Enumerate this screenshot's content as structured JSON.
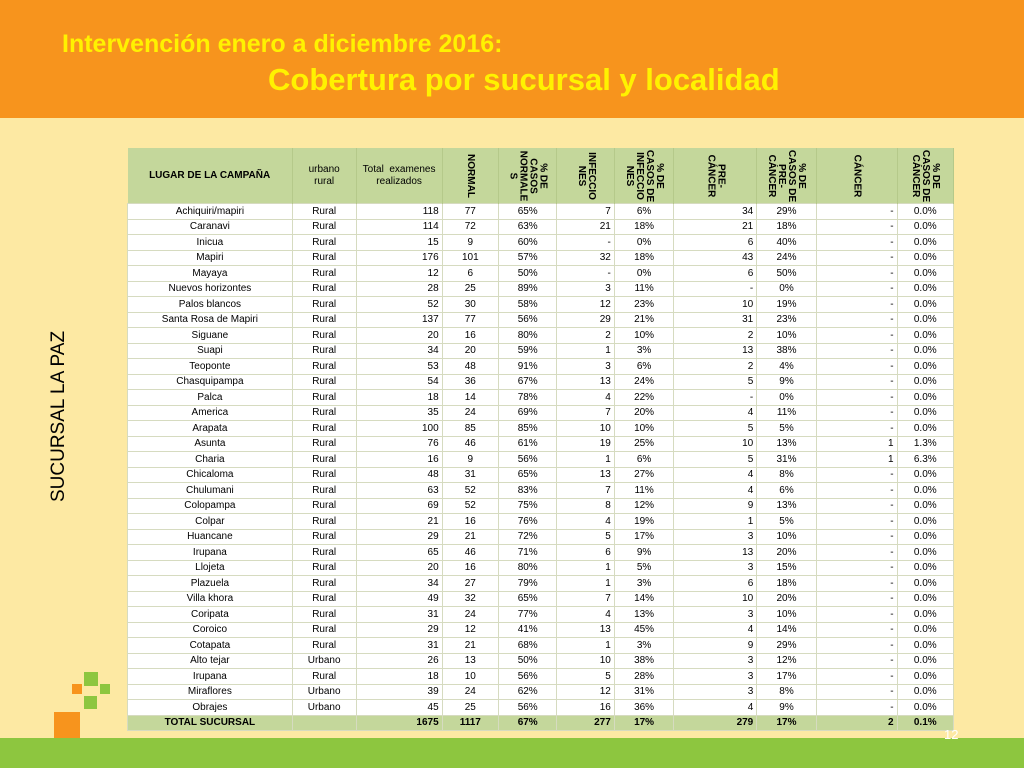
{
  "title_line1": "Intervención enero a diciembre 2016:",
  "title_line2": "Cobertura por sucursal y localidad",
  "side_label": "SUCURSAL  LA PAZ",
  "page_number": "12",
  "colors": {
    "header": "#f7941d",
    "title": "#fff200",
    "background": "#fde9a3",
    "table_header": "#c4d79b",
    "footer": "#8dc63f"
  },
  "table": {
    "headers": [
      "LUGAR DE LA CAMPAÑA",
      "urbano\nrural",
      "Total  examenes\nrealizados",
      "NORMAL",
      "% DE\nCASOS\nNORMALE\nS",
      "INFECCIO\nNES",
      "% DE\nCASOS DE\nINFECCIO\nNES",
      "PRE-\nCÁNCER",
      "% DE\nCASOS DE\nPRE-\nCÁNCER",
      "CÁNCER",
      "% DE\nCASOS DE\nCÁNCER"
    ],
    "rows": [
      [
        "Achiquiri/mapiri",
        "Rural",
        "118",
        "77",
        "65%",
        "7",
        "6%",
        "34",
        "29%",
        "-",
        "0.0%"
      ],
      [
        "Caranavi",
        "Rural",
        "114",
        "72",
        "63%",
        "21",
        "18%",
        "21",
        "18%",
        "-",
        "0.0%"
      ],
      [
        "Inicua",
        "Rural",
        "15",
        "9",
        "60%",
        "-",
        "0%",
        "6",
        "40%",
        "-",
        "0.0%"
      ],
      [
        "Mapiri",
        "Rural",
        "176",
        "101",
        "57%",
        "32",
        "18%",
        "43",
        "24%",
        "-",
        "0.0%"
      ],
      [
        "Mayaya",
        "Rural",
        "12",
        "6",
        "50%",
        "-",
        "0%",
        "6",
        "50%",
        "-",
        "0.0%"
      ],
      [
        "Nuevos horizontes",
        "Rural",
        "28",
        "25",
        "89%",
        "3",
        "11%",
        "-",
        "0%",
        "-",
        "0.0%"
      ],
      [
        "Palos blancos",
        "Rural",
        "52",
        "30",
        "58%",
        "12",
        "23%",
        "10",
        "19%",
        "-",
        "0.0%"
      ],
      [
        "Santa Rosa de Mapiri",
        "Rural",
        "137",
        "77",
        "56%",
        "29",
        "21%",
        "31",
        "23%",
        "-",
        "0.0%"
      ],
      [
        "Siguane",
        "Rural",
        "20",
        "16",
        "80%",
        "2",
        "10%",
        "2",
        "10%",
        "-",
        "0.0%"
      ],
      [
        "Suapi",
        "Rural",
        "34",
        "20",
        "59%",
        "1",
        "3%",
        "13",
        "38%",
        "-",
        "0.0%"
      ],
      [
        "Teoponte",
        "Rural",
        "53",
        "48",
        "91%",
        "3",
        "6%",
        "2",
        "4%",
        "-",
        "0.0%"
      ],
      [
        "Chasquipampa",
        "Rural",
        "54",
        "36",
        "67%",
        "13",
        "24%",
        "5",
        "9%",
        "-",
        "0.0%"
      ],
      [
        "Palca",
        "Rural",
        "18",
        "14",
        "78%",
        "4",
        "22%",
        "-",
        "0%",
        "-",
        "0.0%"
      ],
      [
        "America",
        "Rural",
        "35",
        "24",
        "69%",
        "7",
        "20%",
        "4",
        "11%",
        "-",
        "0.0%"
      ],
      [
        "Arapata",
        "Rural",
        "100",
        "85",
        "85%",
        "10",
        "10%",
        "5",
        "5%",
        "-",
        "0.0%"
      ],
      [
        "Asunta",
        "Rural",
        "76",
        "46",
        "61%",
        "19",
        "25%",
        "10",
        "13%",
        "1",
        "1.3%"
      ],
      [
        "Charia",
        "Rural",
        "16",
        "9",
        "56%",
        "1",
        "6%",
        "5",
        "31%",
        "1",
        "6.3%"
      ],
      [
        "Chicaloma",
        "Rural",
        "48",
        "31",
        "65%",
        "13",
        "27%",
        "4",
        "8%",
        "-",
        "0.0%"
      ],
      [
        "Chulumani",
        "Rural",
        "63",
        "52",
        "83%",
        "7",
        "11%",
        "4",
        "6%",
        "-",
        "0.0%"
      ],
      [
        "Colopampa",
        "Rural",
        "69",
        "52",
        "75%",
        "8",
        "12%",
        "9",
        "13%",
        "-",
        "0.0%"
      ],
      [
        "Colpar",
        "Rural",
        "21",
        "16",
        "76%",
        "4",
        "19%",
        "1",
        "5%",
        "-",
        "0.0%"
      ],
      [
        "Huancane",
        "Rural",
        "29",
        "21",
        "72%",
        "5",
        "17%",
        "3",
        "10%",
        "-",
        "0.0%"
      ],
      [
        "Irupana",
        "Rural",
        "65",
        "46",
        "71%",
        "6",
        "9%",
        "13",
        "20%",
        "-",
        "0.0%"
      ],
      [
        "Llojeta",
        "Rural",
        "20",
        "16",
        "80%",
        "1",
        "5%",
        "3",
        "15%",
        "-",
        "0.0%"
      ],
      [
        "Plazuela",
        "Rural",
        "34",
        "27",
        "79%",
        "1",
        "3%",
        "6",
        "18%",
        "-",
        "0.0%"
      ],
      [
        "Villa khora",
        "Rural",
        "49",
        "32",
        "65%",
        "7",
        "14%",
        "10",
        "20%",
        "-",
        "0.0%"
      ],
      [
        "Coripata",
        "Rural",
        "31",
        "24",
        "77%",
        "4",
        "13%",
        "3",
        "10%",
        "-",
        "0.0%"
      ],
      [
        "Coroico",
        "Rural",
        "29",
        "12",
        "41%",
        "13",
        "45%",
        "4",
        "14%",
        "-",
        "0.0%"
      ],
      [
        "Cotapata",
        "Rural",
        "31",
        "21",
        "68%",
        "1",
        "3%",
        "9",
        "29%",
        "-",
        "0.0%"
      ],
      [
        "Alto tejar",
        "Urbano",
        "26",
        "13",
        "50%",
        "10",
        "38%",
        "3",
        "12%",
        "-",
        "0.0%"
      ],
      [
        "Irupana",
        "Rural",
        "18",
        "10",
        "56%",
        "5",
        "28%",
        "3",
        "17%",
        "-",
        "0.0%"
      ],
      [
        "Miraflores",
        "Urbano",
        "39",
        "24",
        "62%",
        "12",
        "31%",
        "3",
        "8%",
        "-",
        "0.0%"
      ],
      [
        "Obrajes",
        "Urbano",
        "45",
        "25",
        "56%",
        "16",
        "36%",
        "4",
        "9%",
        "-",
        "0.0%"
      ]
    ],
    "total": [
      "TOTAL SUCURSAL",
      "",
      "1675",
      "1117",
      "67%",
      "277",
      "17%",
      "279",
      "17%",
      "2",
      "0.1%"
    ]
  }
}
